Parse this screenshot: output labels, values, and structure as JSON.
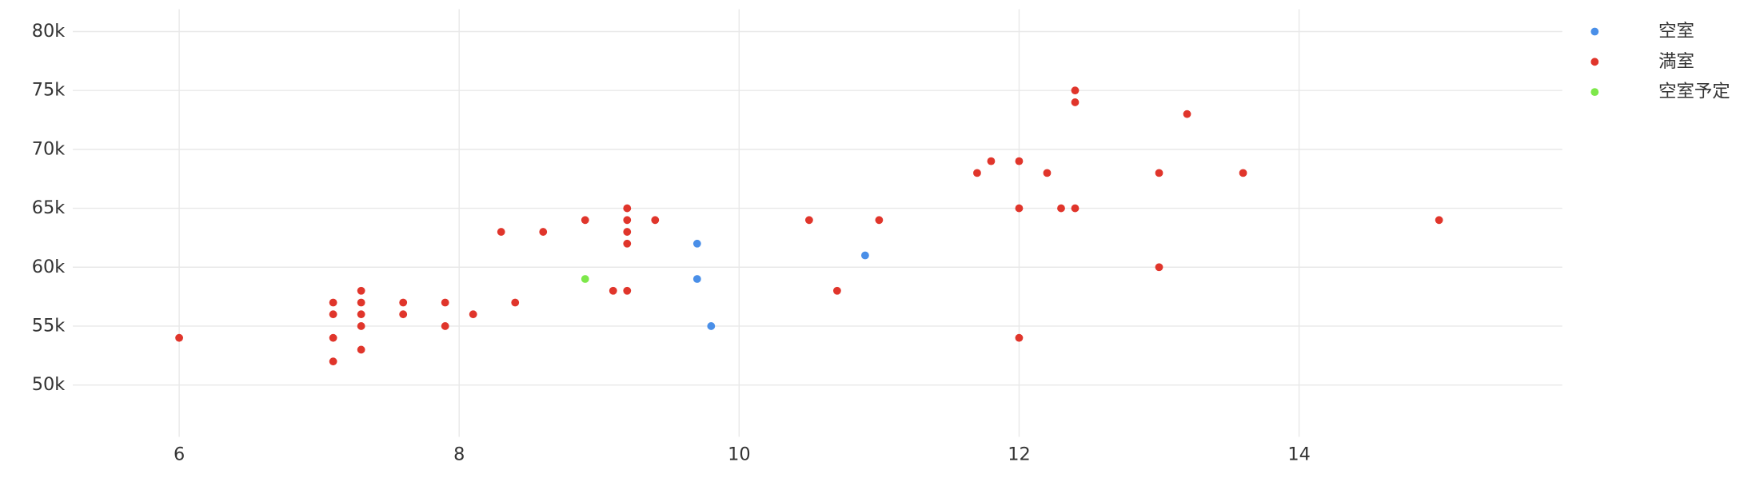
{
  "chart_data": {
    "type": "scatter",
    "xlim": [
      5.24,
      15.88
    ],
    "xticks": [
      6,
      8,
      10,
      12,
      14
    ],
    "ylim": [
      45600,
      81900
    ],
    "yticks": [
      {
        "value": 50000,
        "label": "50k"
      },
      {
        "value": 55000,
        "label": "55k"
      },
      {
        "value": 60000,
        "label": "60k"
      },
      {
        "value": 65000,
        "label": "65k"
      },
      {
        "value": 70000,
        "label": "70k"
      },
      {
        "value": 75000,
        "label": "75k"
      },
      {
        "value": 80000,
        "label": "80k"
      }
    ],
    "grid": true,
    "legend": "upper-right",
    "series": [
      {
        "name": "空室",
        "color": "#4a8fe8",
        "x": [
          9.7,
          9.7,
          9.8,
          10.9
        ],
        "values": [
          62000,
          59000,
          55000,
          61000
        ]
      },
      {
        "name": "満室",
        "color": "#e0352b",
        "x": [
          6,
          7.1,
          7.1,
          7.1,
          7.1,
          7.3,
          7.3,
          7.3,
          7.3,
          7.3,
          7.6,
          7.6,
          7.9,
          7.9,
          8.1,
          8.3,
          8.4,
          8.6,
          8.9,
          9.1,
          9.2,
          9.2,
          9.2,
          9.2,
          9.2,
          9.4,
          10.5,
          10.7,
          11.0,
          11.7,
          11.8,
          12,
          12,
          12,
          12.2,
          12.3,
          12.4,
          12.4,
          12.4,
          13,
          13,
          13.2,
          13.6,
          15
        ],
        "values": [
          54000,
          57000,
          56000,
          54000,
          52000,
          58000,
          57000,
          56000,
          55000,
          53000,
          57000,
          56000,
          57000,
          55000,
          56000,
          63000,
          57000,
          63000,
          64000,
          58000,
          65000,
          64000,
          63000,
          62000,
          58000,
          64000,
          64000,
          58000,
          64000,
          68000,
          69000,
          69000,
          65000,
          54000,
          68000,
          65000,
          75000,
          74000,
          65000,
          68000,
          60000,
          73000,
          68000,
          64000
        ]
      },
      {
        "name": "空室予定",
        "color": "#7de84a",
        "x": [
          8.9
        ],
        "values": [
          59000
        ]
      }
    ]
  }
}
